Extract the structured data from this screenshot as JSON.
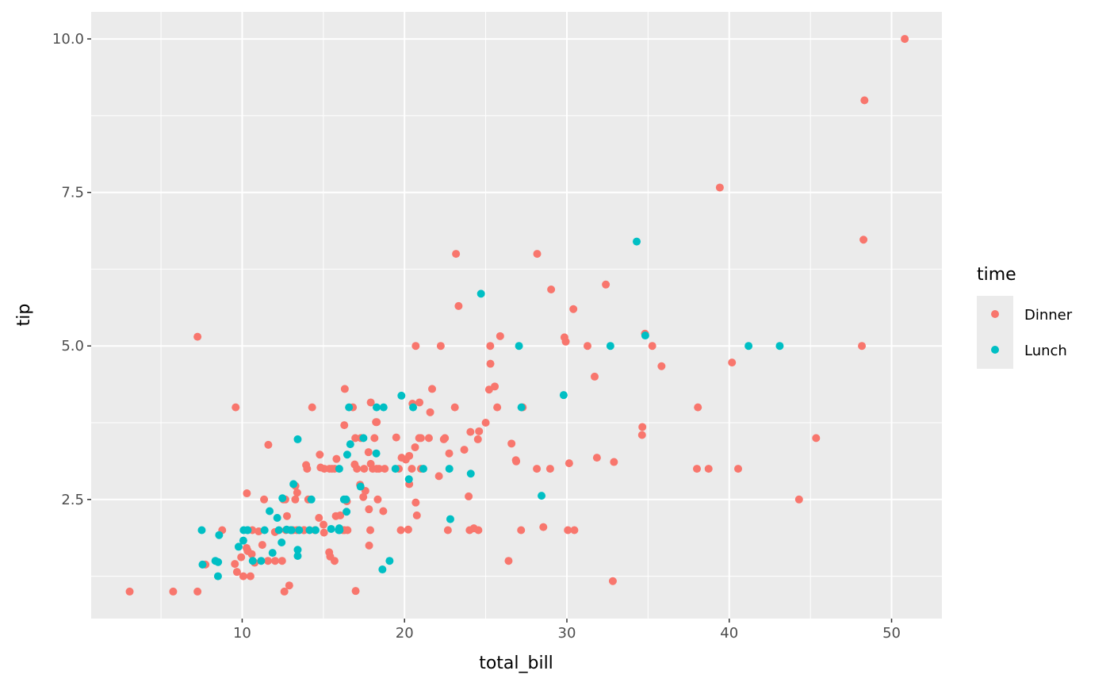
{
  "chart_data": {
    "type": "scatter",
    "title": "",
    "xlabel": "total_bill",
    "ylabel": "tip",
    "xlim": [
      0.7,
      53.1
    ],
    "ylim": [
      0.56,
      10.44
    ],
    "xticks": [
      10,
      20,
      30,
      40,
      50
    ],
    "xtick_labels": [
      "10",
      "20",
      "30",
      "40",
      "50"
    ],
    "yticks": [
      2.5,
      5.0,
      7.5,
      10.0
    ],
    "ytick_labels": [
      "2.5",
      "5.0",
      "7.5",
      "10.0"
    ],
    "grid": true,
    "legend": {
      "title": "time",
      "placement": "right"
    },
    "series": [
      {
        "name": "Dinner",
        "color": "#F8766D",
        "points": [
          [
            16.99,
            1.01
          ],
          [
            10.34,
            1.66
          ],
          [
            21.01,
            3.5
          ],
          [
            23.68,
            3.31
          ],
          [
            24.59,
            3.61
          ],
          [
            25.29,
            4.71
          ],
          [
            8.77,
            2.0
          ],
          [
            26.88,
            3.12
          ],
          [
            15.04,
            1.96
          ],
          [
            14.78,
            3.23
          ],
          [
            10.27,
            1.71
          ],
          [
            35.26,
            5.0
          ],
          [
            15.42,
            1.57
          ],
          [
            18.43,
            3.0
          ],
          [
            14.83,
            3.02
          ],
          [
            21.58,
            3.92
          ],
          [
            10.33,
            1.67
          ],
          [
            16.29,
            3.71
          ],
          [
            16.97,
            3.5
          ],
          [
            20.65,
            3.35
          ],
          [
            17.92,
            4.08
          ],
          [
            20.29,
            2.75
          ],
          [
            15.77,
            2.23
          ],
          [
            39.42,
            7.58
          ],
          [
            19.82,
            3.18
          ],
          [
            17.81,
            2.34
          ],
          [
            13.37,
            2.0
          ],
          [
            12.69,
            2.0
          ],
          [
            21.7,
            4.3
          ],
          [
            19.65,
            3.0
          ],
          [
            9.55,
            1.45
          ],
          [
            18.35,
            2.5
          ],
          [
            15.06,
            3.0
          ],
          [
            20.69,
            2.45
          ],
          [
            17.78,
            3.27
          ],
          [
            24.06,
            3.6
          ],
          [
            16.31,
            2.0
          ],
          [
            16.93,
            3.07
          ],
          [
            18.69,
            2.31
          ],
          [
            31.27,
            5.0
          ],
          [
            16.04,
            2.24
          ],
          [
            17.46,
            2.54
          ],
          [
            13.94,
            3.06
          ],
          [
            9.68,
            1.32
          ],
          [
            30.4,
            5.6
          ],
          [
            18.29,
            3.0
          ],
          [
            22.23,
            5.0
          ],
          [
            32.4,
            6.0
          ],
          [
            28.55,
            2.05
          ],
          [
            18.04,
            3.0
          ],
          [
            12.54,
            2.5
          ],
          [
            10.29,
            2.6
          ],
          [
            34.81,
            5.2
          ],
          [
            9.94,
            1.56
          ],
          [
            25.56,
            4.34
          ],
          [
            19.49,
            3.51
          ],
          [
            38.01,
            3.0
          ],
          [
            26.41,
            1.5
          ],
          [
            11.24,
            1.76
          ],
          [
            48.27,
            6.73
          ],
          [
            20.29,
            3.21
          ],
          [
            13.81,
            2.0
          ],
          [
            11.02,
            1.98
          ],
          [
            18.29,
            3.76
          ],
          [
            17.59,
            2.64
          ],
          [
            20.08,
            3.15
          ],
          [
            16.45,
            2.47
          ],
          [
            3.07,
            1.0
          ],
          [
            20.23,
            2.01
          ],
          [
            15.01,
            2.09
          ],
          [
            12.02,
            1.97
          ],
          [
            17.07,
            3.0
          ],
          [
            26.86,
            3.14
          ],
          [
            25.28,
            5.0
          ],
          [
            14.73,
            2.2
          ],
          [
            10.51,
            1.25
          ],
          [
            17.92,
            3.08
          ],
          [
            28.97,
            3.0
          ],
          [
            22.49,
            3.5
          ],
          [
            5.75,
            1.0
          ],
          [
            16.32,
            4.3
          ],
          [
            22.75,
            3.25
          ],
          [
            40.17,
            4.73
          ],
          [
            27.28,
            4.0
          ],
          [
            12.03,
            1.5
          ],
          [
            21.01,
            3.0
          ],
          [
            12.46,
            1.5
          ],
          [
            11.35,
            2.5
          ],
          [
            15.38,
            3.0
          ],
          [
            44.3,
            2.5
          ],
          [
            22.42,
            3.48
          ],
          [
            20.92,
            4.08
          ],
          [
            15.36,
            1.64
          ],
          [
            20.49,
            4.06
          ],
          [
            25.21,
            4.29
          ],
          [
            18.24,
            3.76
          ],
          [
            14.31,
            4.0
          ],
          [
            14.0,
            3.0
          ],
          [
            7.25,
            1.0
          ],
          [
            38.07,
            4.0
          ],
          [
            23.95,
            2.55
          ],
          [
            25.71,
            4.0
          ],
          [
            17.31,
            3.5
          ],
          [
            29.93,
            5.07
          ],
          [
            14.07,
            2.5
          ],
          [
            13.13,
            2.0
          ],
          [
            17.26,
            2.74
          ],
          [
            24.55,
            2.0
          ],
          [
            19.77,
            2.0
          ],
          [
            29.85,
            5.14
          ],
          [
            48.17,
            5.0
          ],
          [
            25.0,
            3.75
          ],
          [
            13.39,
            2.61
          ],
          [
            16.49,
            2.0
          ],
          [
            21.5,
            3.5
          ],
          [
            12.66,
            2.5
          ],
          [
            16.21,
            2.0
          ],
          [
            13.81,
            2.0
          ],
          [
            17.51,
            3.0
          ],
          [
            24.52,
            3.48
          ],
          [
            20.76,
            2.24
          ],
          [
            31.71,
            4.5
          ],
          [
            10.59,
            1.61
          ],
          [
            10.63,
            2.0
          ],
          [
            50.81,
            10.0
          ],
          [
            15.81,
            3.16
          ],
          [
            7.25,
            5.15
          ],
          [
            31.85,
            3.18
          ],
          [
            16.82,
            4.0
          ],
          [
            32.9,
            3.11
          ],
          [
            17.89,
            2.0
          ],
          [
            14.48,
            2.0
          ],
          [
            9.6,
            4.0
          ],
          [
            34.63,
            3.55
          ],
          [
            34.65,
            3.68
          ],
          [
            23.33,
            5.65
          ],
          [
            45.35,
            3.5
          ],
          [
            23.17,
            6.5
          ],
          [
            40.55,
            3.0
          ],
          [
            20.69,
            5.0
          ],
          [
            20.9,
            3.5
          ],
          [
            30.46,
            2.0
          ],
          [
            18.15,
            3.5
          ],
          [
            23.1,
            4.0
          ],
          [
            15.69,
            1.5
          ],
          [
            26.59,
            3.41
          ],
          [
            38.73,
            3.0
          ],
          [
            24.27,
            2.03
          ],
          [
            12.76,
            2.23
          ],
          [
            30.06,
            2.0
          ],
          [
            25.89,
            5.16
          ],
          [
            48.33,
            9.0
          ],
          [
            13.27,
            2.5
          ],
          [
            28.17,
            6.5
          ],
          [
            12.9,
            1.1
          ],
          [
            28.15,
            3.0
          ],
          [
            11.59,
            1.5
          ],
          [
            7.74,
            1.44
          ],
          [
            30.14,
            3.09
          ],
          [
            20.45,
            3.0
          ],
          [
            13.28,
            2.72
          ],
          [
            22.12,
            2.88
          ],
          [
            24.01,
            2.0
          ],
          [
            15.69,
            3.0
          ],
          [
            11.61,
            3.39
          ],
          [
            10.77,
            1.47
          ],
          [
            15.53,
            3.0
          ],
          [
            10.07,
            1.25
          ],
          [
            12.6,
            1.0
          ],
          [
            32.83,
            1.17
          ],
          [
            35.83,
            4.67
          ],
          [
            29.03,
            5.92
          ],
          [
            27.18,
            2.0
          ],
          [
            22.67,
            2.0
          ],
          [
            17.82,
            1.75
          ],
          [
            18.78,
            3.0
          ]
        ]
      },
      {
        "name": "Lunch",
        "color": "#00BFC4",
        "points": [
          [
            27.2,
            4.0
          ],
          [
            22.76,
            3.0
          ],
          [
            17.29,
            2.71
          ],
          [
            19.44,
            3.0
          ],
          [
            16.66,
            3.4
          ],
          [
            10.07,
            1.83
          ],
          [
            32.68,
            5.0
          ],
          [
            15.98,
            2.03
          ],
          [
            34.83,
            5.17
          ],
          [
            13.03,
            2.0
          ],
          [
            18.28,
            4.0
          ],
          [
            24.71,
            5.85
          ],
          [
            21.16,
            3.0
          ],
          [
            10.65,
            1.5
          ],
          [
            12.43,
            1.8
          ],
          [
            24.08,
            2.92
          ],
          [
            11.69,
            2.31
          ],
          [
            13.42,
            1.68
          ],
          [
            14.26,
            2.5
          ],
          [
            15.95,
            2.0
          ],
          [
            12.48,
            2.52
          ],
          [
            29.8,
            4.2
          ],
          [
            8.52,
            1.48
          ],
          [
            14.52,
            2.0
          ],
          [
            11.38,
            2.0
          ],
          [
            22.82,
            2.18
          ],
          [
            19.08,
            1.5
          ],
          [
            20.27,
            2.83
          ],
          [
            11.17,
            1.5
          ],
          [
            12.26,
            2.0
          ],
          [
            18.26,
            3.25
          ],
          [
            8.51,
            1.25
          ],
          [
            10.33,
            2.0
          ],
          [
            14.15,
            2.0
          ],
          [
            16.0,
            2.0
          ],
          [
            13.16,
            2.75
          ],
          [
            17.47,
            3.5
          ],
          [
            34.3,
            6.7
          ],
          [
            41.19,
            5.0
          ],
          [
            27.05,
            5.0
          ],
          [
            16.43,
            2.3
          ],
          [
            8.35,
            1.5
          ],
          [
            18.64,
            1.36
          ],
          [
            11.87,
            1.63
          ],
          [
            9.78,
            1.73
          ],
          [
            7.51,
            2.0
          ],
          [
            19.81,
            4.19
          ],
          [
            28.44,
            2.56
          ],
          [
            15.48,
            2.02
          ],
          [
            16.58,
            4.0
          ],
          [
            7.56,
            1.44
          ],
          [
            10.34,
            2.0
          ],
          [
            43.11,
            5.0
          ],
          [
            13.0,
            2.0
          ],
          [
            13.51,
            2.0
          ],
          [
            18.71,
            4.0
          ],
          [
            12.74,
            2.01
          ],
          [
            13.0,
            2.0
          ],
          [
            16.4,
            2.5
          ],
          [
            20.53,
            4.0
          ],
          [
            16.47,
            3.23
          ],
          [
            12.16,
            2.2
          ],
          [
            13.42,
            3.48
          ],
          [
            8.58,
            1.92
          ],
          [
            15.98,
            3.0
          ],
          [
            13.42,
            1.58
          ],
          [
            16.27,
            2.5
          ],
          [
            10.09,
            2.0
          ]
        ]
      }
    ]
  }
}
